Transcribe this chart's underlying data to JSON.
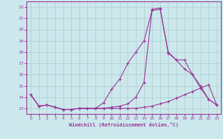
{
  "background_color": "#cce8ec",
  "grid_color": "#aacccc",
  "line_color": "#993399",
  "xlabel": "Windchill (Refroidissement éolien,°C)",
  "xlim": [
    -0.5,
    23.5
  ],
  "ylim": [
    12.5,
    22.5
  ],
  "xticks": [
    0,
    1,
    2,
    3,
    4,
    5,
    6,
    7,
    8,
    9,
    10,
    11,
    12,
    13,
    14,
    15,
    16,
    17,
    18,
    19,
    20,
    21,
    22,
    23
  ],
  "yticks": [
    13,
    14,
    15,
    16,
    17,
    18,
    19,
    20,
    21,
    22
  ],
  "line1_x": [
    0,
    1,
    2,
    3,
    4,
    5,
    6,
    7,
    8,
    9,
    10,
    11,
    12,
    13,
    14,
    15,
    16,
    17,
    18,
    19,
    20,
    21,
    22,
    23
  ],
  "line1_y": [
    14.2,
    13.2,
    13.3,
    13.1,
    12.9,
    12.9,
    13.0,
    13.0,
    13.0,
    13.0,
    13.0,
    13.0,
    13.0,
    13.0,
    13.1,
    13.2,
    13.4,
    13.6,
    13.9,
    14.2,
    14.5,
    14.8,
    15.1,
    13.3
  ],
  "line2_x": [
    0,
    1,
    2,
    3,
    4,
    5,
    6,
    7,
    8,
    9,
    10,
    11,
    12,
    13,
    14,
    15,
    16,
    17,
    18,
    19,
    20,
    21,
    22,
    23
  ],
  "line2_y": [
    14.2,
    13.2,
    13.3,
    13.1,
    12.9,
    12.9,
    13.0,
    13.0,
    13.0,
    13.0,
    13.1,
    13.2,
    13.4,
    14.0,
    15.3,
    21.8,
    21.9,
    17.9,
    17.3,
    16.5,
    16.0,
    14.8,
    13.8,
    13.3
  ],
  "line3_x": [
    0,
    1,
    2,
    3,
    4,
    5,
    6,
    7,
    8,
    9,
    10,
    11,
    12,
    13,
    14,
    15,
    16,
    17,
    18,
    19,
    20,
    21,
    22,
    23
  ],
  "line3_y": [
    14.2,
    13.2,
    13.3,
    13.1,
    12.9,
    12.9,
    13.0,
    13.0,
    13.0,
    13.5,
    14.7,
    15.6,
    17.0,
    18.0,
    19.0,
    21.7,
    21.8,
    18.0,
    17.3,
    17.3,
    16.0,
    15.0,
    13.8,
    13.3
  ]
}
